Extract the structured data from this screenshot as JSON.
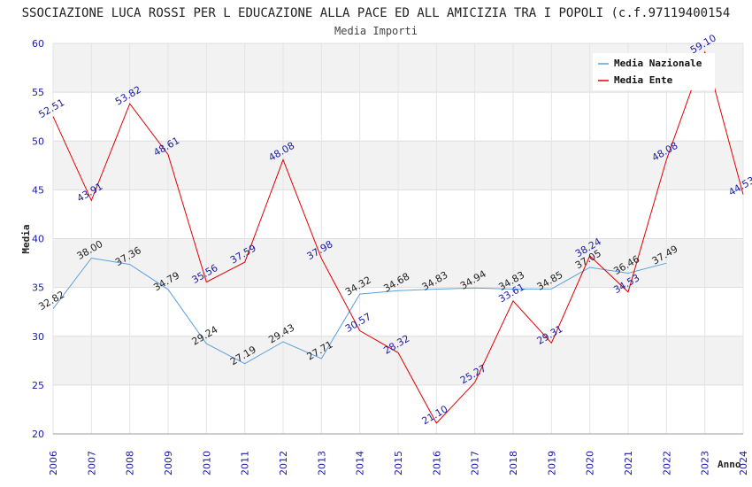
{
  "chart_data": {
    "type": "line",
    "title": "SSOCIAZIONE LUCA ROSSI PER L EDUCAZIONE ALLA PACE ED ALL AMICIZIA TRA I POPOLI (c.f.97119400154",
    "subtitle": "Media Importi",
    "xlabel": "Anno",
    "ylabel": "Media",
    "ylim": [
      20,
      60
    ],
    "yticks": [
      20,
      25,
      30,
      35,
      40,
      45,
      50,
      55,
      60
    ],
    "grid": true,
    "legend_position": "top-right",
    "x": [
      "2006",
      "2007",
      "2008",
      "2009",
      "2010",
      "2011",
      "2012",
      "2013",
      "2014",
      "2015",
      "2016",
      "2017",
      "2018",
      "2019",
      "2020",
      "2021",
      "2022",
      "2023",
      "2024"
    ],
    "series": [
      {
        "name": "Media Nazionale",
        "color": "#5aa0e0",
        "values": [
          32.82,
          38.0,
          37.36,
          34.79,
          29.24,
          27.19,
          29.43,
          27.71,
          34.32,
          34.68,
          34.83,
          34.94,
          34.83,
          34.85,
          37.05,
          36.46,
          37.49,
          null,
          null
        ],
        "labels": [
          "32.82",
          "38.00",
          "37.36",
          "34.79",
          "29.24",
          "27.19",
          "29.43",
          "27.71",
          "34.32",
          "34.68",
          "34.83",
          "34.94",
          "34.83",
          "34.85",
          "37.05",
          "36.46",
          "37.49",
          "",
          ""
        ]
      },
      {
        "name": "Media Ente",
        "color": "#e00000",
        "values": [
          52.51,
          43.91,
          53.82,
          48.61,
          35.56,
          37.59,
          48.08,
          37.98,
          30.57,
          28.32,
          21.1,
          25.27,
          33.61,
          29.31,
          38.24,
          34.53,
          48.08,
          59.1,
          44.53
        ],
        "labels": [
          "52.51",
          "43.91",
          "53.82",
          "48.61",
          "35.56",
          "37.59",
          "48.08",
          "37.98",
          "30.57",
          "28.32",
          "21.10",
          "25.27",
          "33.61",
          "29.31",
          "38.24",
          "34.53",
          "48.08",
          "59.10",
          "44.53"
        ]
      }
    ]
  }
}
